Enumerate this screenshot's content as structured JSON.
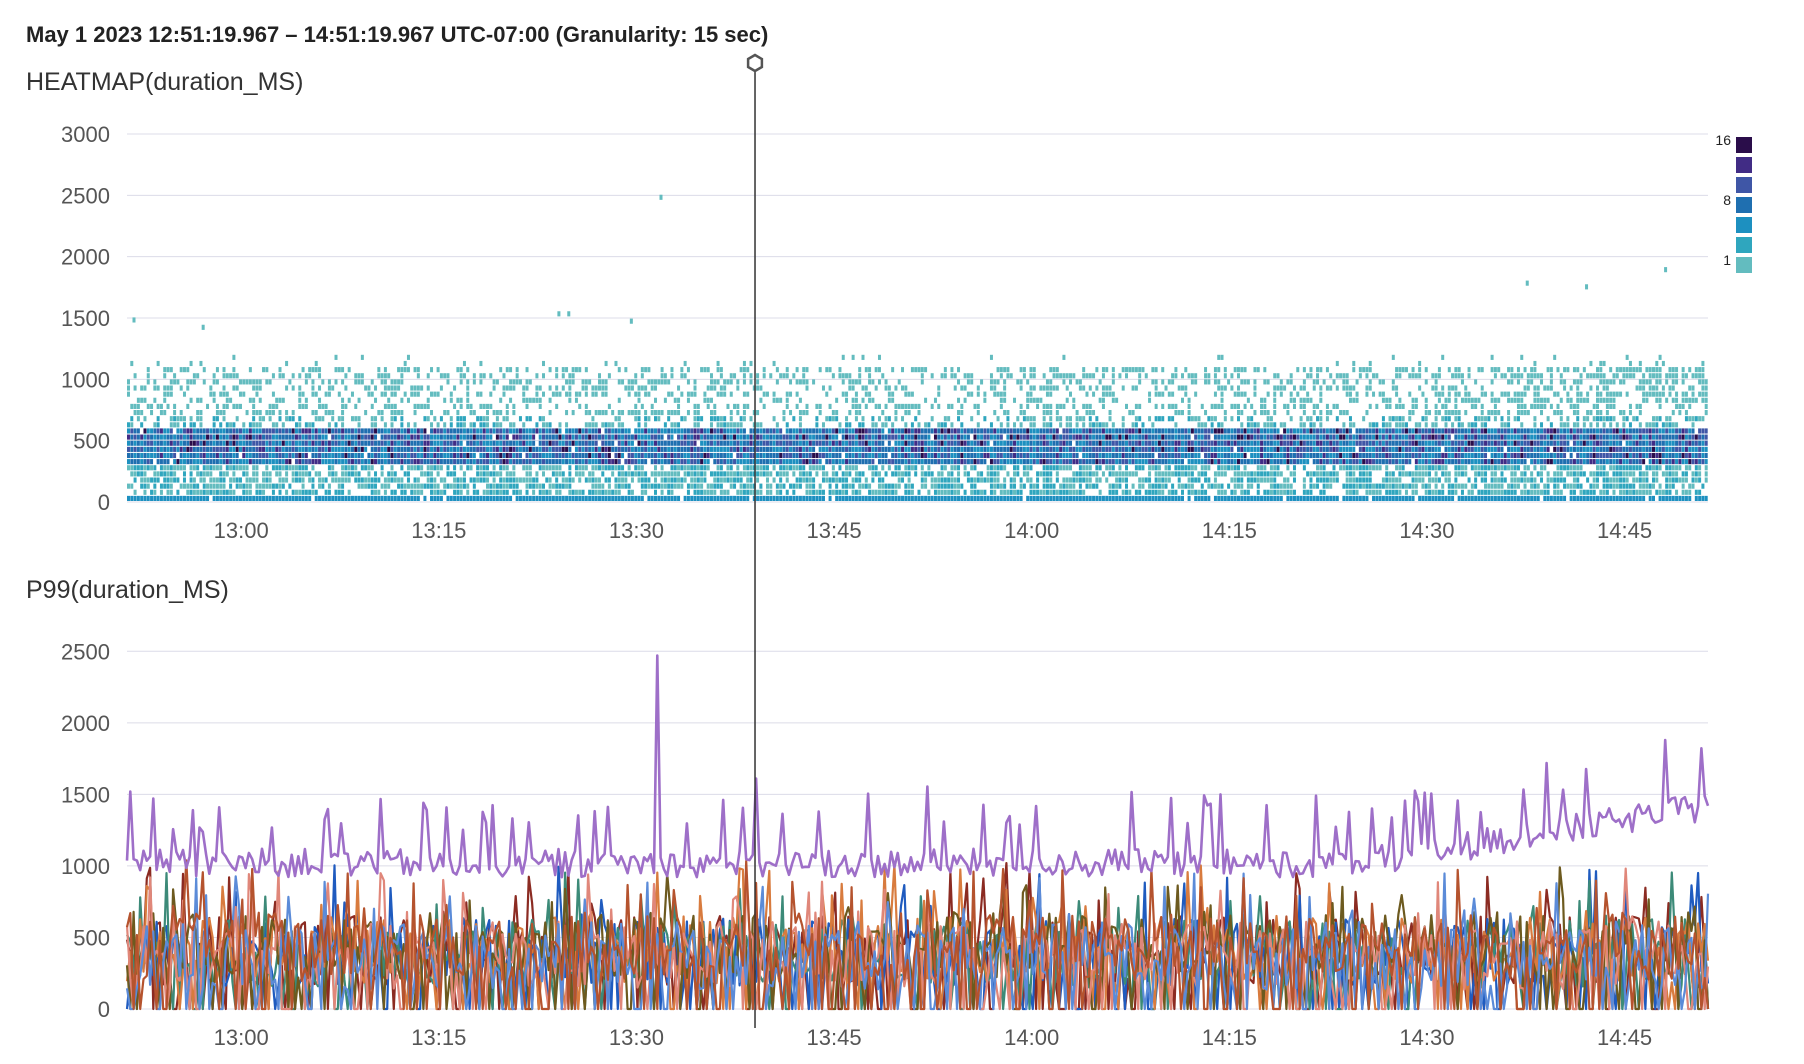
{
  "header": {
    "time_range": "May 1 2023 12:51:19.967 – 14:51:19.967 UTC-07:00 (Granularity: 15 sec)"
  },
  "panels": {
    "heatmap_title": "HEATMAP(duration_MS)",
    "p99_title": "P99(duration_MS)"
  },
  "colors": {
    "grid": "#dcdce8",
    "cursor_line": "#333333",
    "heat_scale": [
      "#63bcbf",
      "#2fa6be",
      "#1d90c0",
      "#1f6fb0",
      "#3f56a6",
      "#412c85",
      "#2a0d4a"
    ],
    "p99_highlight": "#9e6fc8",
    "p99_series": [
      "#8b2b22",
      "#1f5bbf",
      "#3c8a78",
      "#d87b3e",
      "#6d5a1f",
      "#e0877a",
      "#5b8bd8",
      "#b5532e"
    ]
  },
  "chart_data": [
    {
      "type": "heatmap",
      "title": "HEATMAP(duration_MS)",
      "x_start": "12:51:19.967",
      "x_end": "14:51:19.967",
      "x_ticks": [
        "13:00",
        "13:15",
        "13:30",
        "13:45",
        "14:00",
        "14:15",
        "14:30",
        "14:45"
      ],
      "y_ticks": [
        "0",
        "500",
        "1000",
        "1500",
        "2000",
        "2500",
        "3000"
      ],
      "ylim": [
        0,
        3000
      ],
      "bucket_ms": 50,
      "granularity_sec": 15,
      "legend": {
        "labels": [
          "16",
          "8",
          "1"
        ],
        "max": 16,
        "min": 1
      },
      "outliers": [
        {
          "time": "12:51:45",
          "ms": 1480
        },
        {
          "time": "12:57:00",
          "ms": 1420
        },
        {
          "time": "13:24:00",
          "ms": 1530
        },
        {
          "time": "13:24:45",
          "ms": 1530
        },
        {
          "time": "13:29:30",
          "ms": 1470
        },
        {
          "time": "13:31:45",
          "ms": 2480
        },
        {
          "time": "14:37:30",
          "ms": 1780
        },
        {
          "time": "14:42:00",
          "ms": 1750
        },
        {
          "time": "14:48:00",
          "ms": 1890
        }
      ]
    },
    {
      "type": "line",
      "title": "P99(duration_MS)",
      "x_start": "12:51:19.967",
      "x_end": "14:51:19.967",
      "x_ticks": [
        "13:00",
        "13:15",
        "13:30",
        "13:45",
        "14:00",
        "14:15",
        "14:30",
        "14:45"
      ],
      "y_ticks": [
        "0",
        "500",
        "1000",
        "1500",
        "2000",
        "2500"
      ],
      "ylim": [
        0,
        2600
      ],
      "series_count": 9,
      "highlight_series": {
        "baseline_ms": 1000,
        "peak": {
          "time": "13:31:30",
          "ms": 2470
        },
        "late_peak": {
          "time": "14:48:00",
          "ms": 1880
        }
      },
      "other_series_range_ms": [
        0,
        1000
      ]
    }
  ],
  "cursor": {
    "time": "13:39:00"
  }
}
